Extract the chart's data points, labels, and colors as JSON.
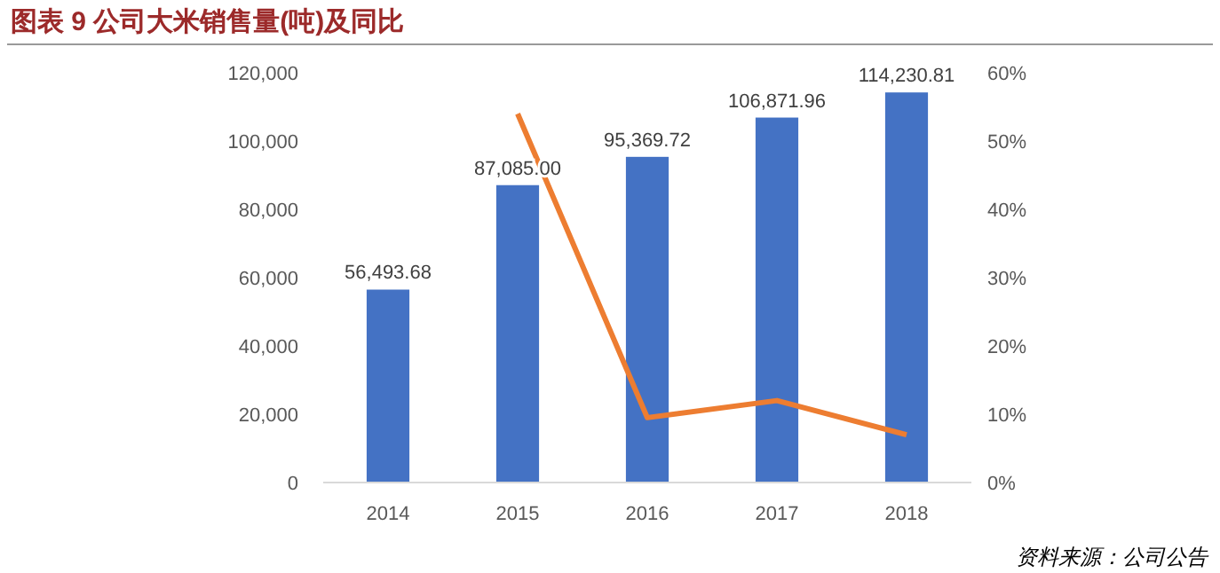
{
  "chart_data": {
    "type": "bar",
    "title": "图表 9 公司大米销售量(吨)及同比",
    "categories": [
      "2014",
      "2015",
      "2016",
      "2017",
      "2018"
    ],
    "series": [
      {
        "color": "#4472c4",
        "values": [
          56493.68,
          87085.0,
          95369.72,
          106871.96,
          114230.81
        ],
        "value_labels": [
          "56,493.68",
          "87,085.00",
          "95,369.72",
          "106,871.96",
          "114,230.81"
        ]
      },
      {
        "type": "line",
        "axis": "y2",
        "color": "#ed7d31",
        "values": [
          null,
          54,
          9.5,
          12,
          7
        ]
      }
    ],
    "ylim": [
      0,
      120000
    ],
    "yticks": [
      {
        "value": 0,
        "label": "0"
      },
      {
        "value": 20000,
        "label": "20,000"
      },
      {
        "value": 40000,
        "label": "40,000"
      },
      {
        "value": 60000,
        "label": "60,000"
      },
      {
        "value": 80000,
        "label": "80,000"
      },
      {
        "value": 100000,
        "label": "100,000"
      },
      {
        "value": 120000,
        "label": "120,000"
      }
    ],
    "y2lim": [
      0,
      60
    ],
    "y2ticks": [
      {
        "value": 0,
        "label": "0%"
      },
      {
        "value": 10,
        "label": "10%"
      },
      {
        "value": 20,
        "label": "20%"
      },
      {
        "value": 30,
        "label": "30%"
      },
      {
        "value": 40,
        "label": "40%"
      },
      {
        "value": 50,
        "label": "50%"
      },
      {
        "value": 60,
        "label": "60%"
      }
    ],
    "grid": false,
    "marker": "none",
    "annotations": [
      "资料来源：公司公告"
    ]
  }
}
